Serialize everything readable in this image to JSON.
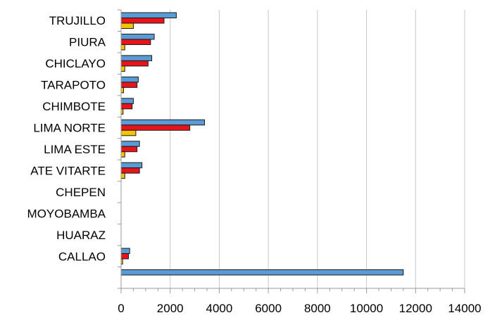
{
  "chart_data": {
    "type": "bar",
    "orientation": "horizontal",
    "categories": [
      "TRUJILLO",
      "PIURA",
      "CHICLAYO",
      "TARAPOTO",
      "CHIMBOTE",
      "LIMA NORTE",
      "LIMA ESTE",
      "ATE VITARTE",
      "CHEPEN",
      "MOYOBAMBA",
      "HUARAZ",
      "CALLAO",
      ""
    ],
    "series": [
      {
        "color": "#5b9bd5",
        "values": [
          2250,
          1350,
          1250,
          700,
          500,
          3400,
          750,
          850,
          0,
          0,
          0,
          350,
          11500
        ]
      },
      {
        "color": "#e8141b",
        "values": [
          1750,
          1200,
          1100,
          650,
          450,
          2800,
          650,
          750,
          0,
          0,
          0,
          300,
          0
        ]
      },
      {
        "color": "#f2c500",
        "values": [
          500,
          150,
          150,
          100,
          80,
          600,
          150,
          150,
          0,
          0,
          0,
          60,
          0
        ]
      }
    ],
    "xlim": [
      0,
      14000
    ],
    "xticks": [
      "0",
      "2000",
      "4000",
      "6000",
      "8000",
      "10000",
      "12000",
      "14000"
    ],
    "title": "",
    "xlabel": "",
    "ylabel": "",
    "grid": "vertical major gridlines",
    "legend": "none"
  }
}
